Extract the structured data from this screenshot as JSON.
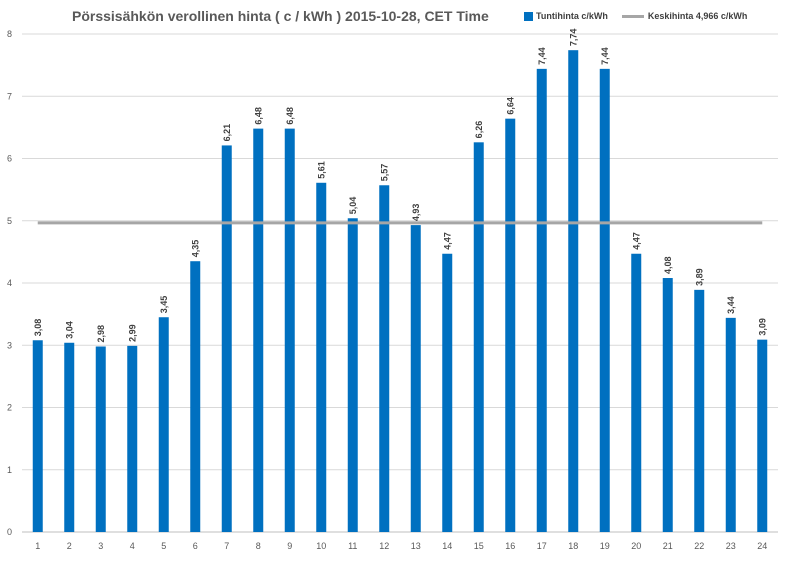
{
  "chart_data": {
    "type": "bar",
    "title": "Pörssisähkön verollinen hinta ( c / kWh ) 2015-10-28, CET Time",
    "categories": [
      "1",
      "2",
      "3",
      "4",
      "5",
      "6",
      "7",
      "8",
      "9",
      "10",
      "11",
      "12",
      "13",
      "14",
      "15",
      "16",
      "17",
      "18",
      "19",
      "20",
      "21",
      "22",
      "23",
      "24"
    ],
    "series": [
      {
        "name": "Tuntihinta c/kWh",
        "type": "bar",
        "color": "#0070C0",
        "values": [
          3.08,
          3.04,
          2.98,
          2.99,
          3.45,
          4.35,
          6.21,
          6.48,
          6.48,
          5.61,
          5.04,
          5.57,
          4.93,
          4.47,
          6.26,
          6.64,
          7.44,
          7.74,
          7.44,
          4.47,
          4.08,
          3.89,
          3.44,
          3.09
        ],
        "labels": [
          "3,08",
          "3,04",
          "2,98",
          "2,99",
          "3,45",
          "4,35",
          "6,21",
          "6,48",
          "6,48",
          "5,61",
          "5,04",
          "5,57",
          "4,93",
          "4,47",
          "6,26",
          "6,64",
          "7,44",
          "7,74",
          "7,44",
          "4,47",
          "4,08",
          "3,89",
          "3,44",
          "3,09"
        ]
      },
      {
        "name": "Keskihinta 4,966 c/kWh",
        "type": "line",
        "color": "#A6A6A6",
        "value": 4.966
      }
    ],
    "ylim": [
      0,
      8
    ],
    "yticks": [
      "0",
      "1",
      "2",
      "3",
      "4",
      "5",
      "6",
      "7",
      "8"
    ],
    "grid": true,
    "legend_position": "top-right"
  }
}
